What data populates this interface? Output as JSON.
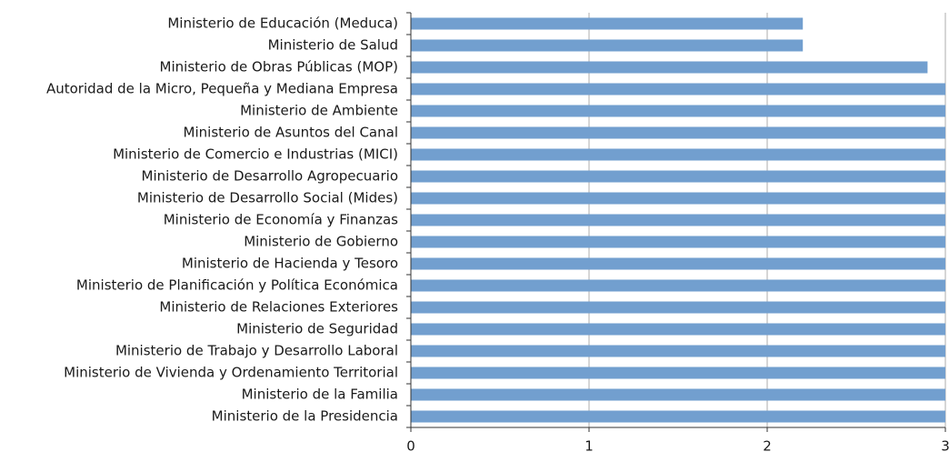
{
  "chart_data": {
    "type": "barh",
    "categories": [
      "Ministerio de Educación (Meduca)",
      "Ministerio de Salud",
      "Ministerio de Obras Públicas (MOP)",
      "Autoridad de la Micro, Pequeña y Mediana Empresa",
      "Ministerio de Ambiente",
      "Ministerio de Asuntos del Canal",
      "Ministerio de Comercio e Industrias (MICI)",
      "Ministerio de Desarrollo Agropecuario",
      "Ministerio de Desarrollo Social (Mides)",
      "Ministerio de Economía y Finanzas",
      "Ministerio de Gobierno",
      "Ministerio de Hacienda y Tesoro",
      "Ministerio de Planificación y Política Económica",
      "Ministerio de Relaciones Exteriores",
      "Ministerio de Seguridad",
      "Ministerio de Trabajo y Desarrollo Laboral",
      "Ministerio de Vivienda y Ordenamiento Territorial",
      "Ministerio de la Familia",
      "Ministerio de la Presidencia"
    ],
    "values": [
      2.2,
      2.2,
      2.9,
      3,
      3,
      3,
      3,
      3,
      3,
      3,
      3,
      3,
      3,
      3,
      3,
      3,
      3,
      3,
      3
    ],
    "color": "#729fcf",
    "xlim": [
      0,
      3
    ],
    "xticks": [
      0,
      1,
      2,
      3
    ],
    "grid": true
  }
}
